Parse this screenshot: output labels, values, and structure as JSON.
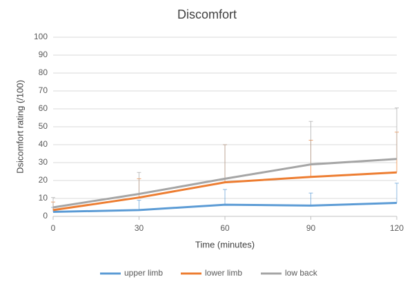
{
  "chart_data": {
    "type": "line",
    "title": "Discomfort",
    "x_label": "Time (minutes)",
    "y_label": "Dsicomfort rating (/100)",
    "x": [
      0,
      30,
      60,
      90,
      120
    ],
    "series": [
      {
        "name": "upper limb",
        "color": "#5b9bd5",
        "values": [
          2.5,
          3.5,
          6.5,
          6,
          7.5
        ],
        "errors": [
          2.5,
          5.5,
          8.5,
          7,
          11
        ]
      },
      {
        "name": "lower limb",
        "color": "#ed7d31",
        "values": [
          3.5,
          10.5,
          19,
          22,
          24.5
        ],
        "errors": [
          4.5,
          10.5,
          21,
          20.5,
          22.5
        ]
      },
      {
        "name": "low back",
        "color": "#a5a5a5",
        "values": [
          5,
          12.5,
          21,
          29,
          32
        ],
        "errors": [
          5.5,
          12,
          19,
          24,
          28.5
        ]
      }
    ],
    "xlim": [
      0,
      120
    ],
    "xticks": [
      0,
      30,
      60,
      90,
      120
    ],
    "ylim": [
      0,
      100
    ],
    "yticks": [
      0,
      10,
      20,
      30,
      40,
      50,
      60,
      70,
      80,
      90,
      100
    ],
    "grid": true,
    "legend": "bottom"
  }
}
